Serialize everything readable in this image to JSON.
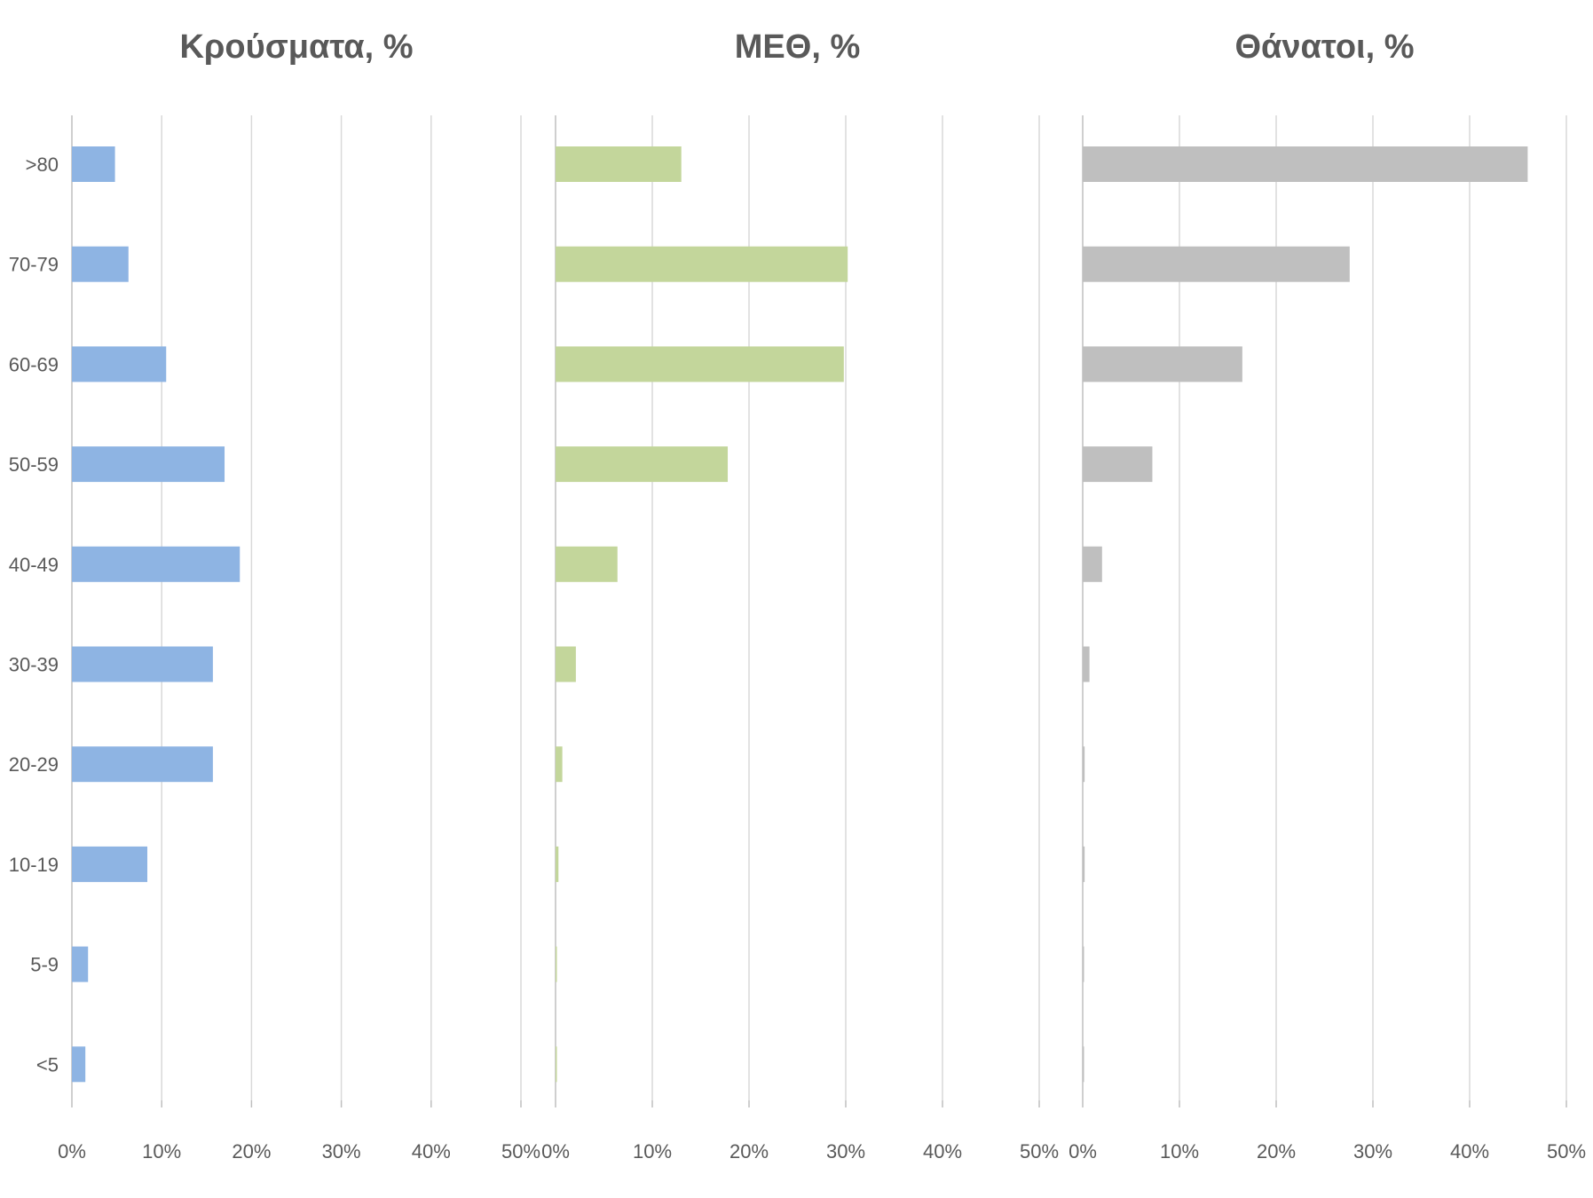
{
  "chart_data": {
    "type": "bar",
    "orientation": "horizontal",
    "categories": [
      ">80",
      "70-79",
      "60-69",
      "50-59",
      "40-49",
      "30-39",
      "20-29",
      "10-19",
      "5-9",
      "<5"
    ],
    "xlim": [
      0,
      50
    ],
    "x_ticks": [
      "0%",
      "10%",
      "20%",
      "30%",
      "40%",
      "50%"
    ],
    "grid": true,
    "panels": [
      {
        "title": "Κρούσματα, %",
        "color": "#8eb4e3",
        "values": [
          4.8,
          6.3,
          10.5,
          17.0,
          18.7,
          15.7,
          15.7,
          8.4,
          1.8,
          1.5
        ]
      },
      {
        "title": "ΜΕΘ, %",
        "color": "#c3d69b",
        "values": [
          13.0,
          30.2,
          29.8,
          17.8,
          6.4,
          2.1,
          0.7,
          0.3,
          0.1,
          0.1
        ]
      },
      {
        "title": "Θάνατοι, %",
        "color": "#bfbfbf",
        "values": [
          46.0,
          27.6,
          16.5,
          7.2,
          2.0,
          0.7,
          0.2,
          0.2,
          0.1,
          0.1
        ]
      }
    ]
  }
}
